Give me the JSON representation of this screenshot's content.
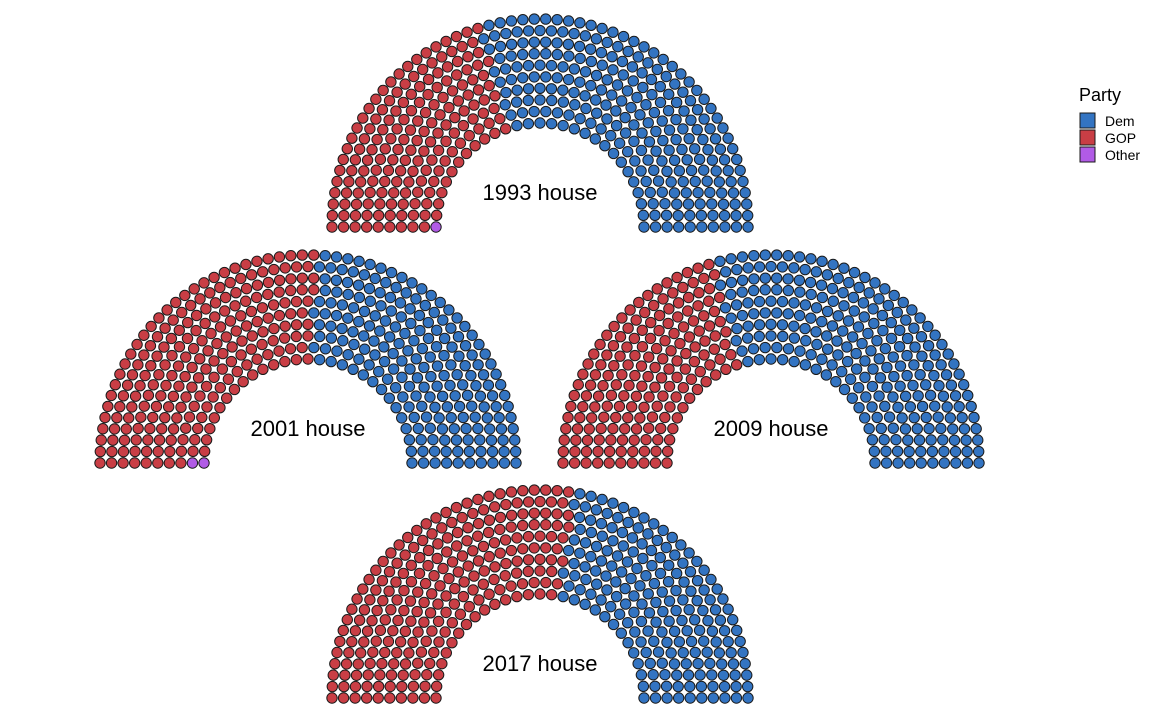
{
  "chart_data": {
    "type": "parliament",
    "legend": {
      "title": "Party",
      "position": "top-right",
      "entries": [
        {
          "name": "Dem",
          "color": "#3374c2"
        },
        {
          "name": "GOP",
          "color": "#c93e45"
        },
        {
          "name": "Other",
          "color": "#b15be6"
        }
      ]
    },
    "houses": [
      {
        "label": "1993 house",
        "seats": {
          "Other": 1,
          "GOP": 176,
          "Dem": 258
        }
      },
      {
        "label": "2001 house",
        "seats": {
          "Other": 2,
          "GOP": 221,
          "Dem": 212
        }
      },
      {
        "label": "2009 house",
        "seats": {
          "Other": 0,
          "GOP": 178,
          "Dem": 257
        }
      },
      {
        "label": "2017 house",
        "seats": {
          "Other": 0,
          "GOP": 241,
          "Dem": 194
        }
      }
    ]
  }
}
